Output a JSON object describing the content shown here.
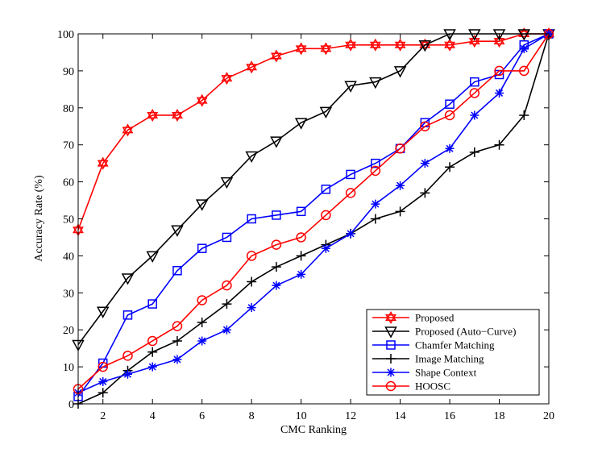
{
  "chart_data": {
    "type": "line",
    "xlabel": "CMC Ranking",
    "ylabel": "Accuracy Rate (%)",
    "xlim": [
      1,
      20
    ],
    "ylim": [
      0,
      100
    ],
    "xticks": [
      2,
      4,
      6,
      8,
      10,
      12,
      14,
      16,
      18,
      20
    ],
    "yticks": [
      0,
      10,
      20,
      30,
      40,
      50,
      60,
      70,
      80,
      90,
      100
    ],
    "grid": false,
    "legend_position": "bottom-right",
    "x": [
      1,
      2,
      3,
      4,
      5,
      6,
      7,
      8,
      9,
      10,
      11,
      12,
      13,
      14,
      15,
      16,
      17,
      18,
      19,
      20
    ],
    "series": [
      {
        "name": "Proposed",
        "color": "#ff0000",
        "marker": "hexagram",
        "values": [
          47,
          65,
          74,
          78,
          78,
          82,
          88,
          91,
          94,
          96,
          96,
          97,
          97,
          97,
          97,
          97,
          98,
          98,
          100,
          100
        ]
      },
      {
        "name": "Proposed (Auto−Curve)",
        "color": "#000000",
        "marker": "triangle-down",
        "values": [
          16,
          25,
          34,
          40,
          47,
          54,
          60,
          67,
          71,
          76,
          79,
          86,
          87,
          90,
          97,
          100,
          100,
          100,
          100,
          100
        ]
      },
      {
        "name": "Chamfer Matching",
        "color": "#0000ff",
        "marker": "square",
        "values": [
          2,
          11,
          24,
          27,
          36,
          42,
          45,
          50,
          51,
          52,
          58,
          62,
          65,
          69,
          76,
          81,
          87,
          89,
          97,
          100
        ]
      },
      {
        "name": "Image Matching",
        "color": "#000000",
        "marker": "plus",
        "values": [
          0,
          3,
          9,
          14,
          17,
          22,
          27,
          33,
          37,
          40,
          43,
          46,
          50,
          52,
          57,
          64,
          68,
          70,
          78,
          100
        ]
      },
      {
        "name": "Shape Context",
        "color": "#0000ff",
        "marker": "asterisk",
        "values": [
          3,
          6,
          8,
          10,
          12,
          17,
          20,
          26,
          32,
          35,
          42,
          46,
          54,
          59,
          65,
          69,
          78,
          84,
          96,
          100
        ]
      },
      {
        "name": "HOOSC",
        "color": "#ff0000",
        "marker": "circle",
        "values": [
          4,
          10,
          13,
          17,
          21,
          28,
          32,
          40,
          43,
          45,
          51,
          57,
          63,
          69,
          75,
          78,
          84,
          90,
          90,
          100
        ]
      }
    ]
  }
}
